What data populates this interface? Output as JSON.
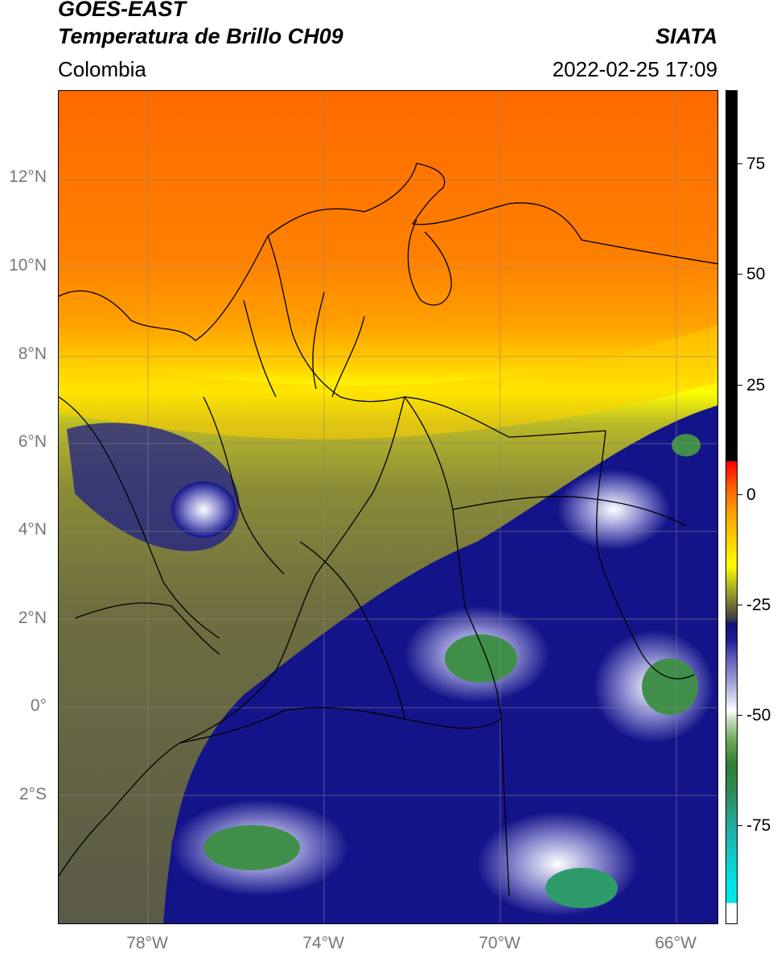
{
  "header": {
    "title_line1": "GOES-EAST",
    "title_line2": "Temperatura de Brillo CH09",
    "brand": "SIATA",
    "region": "Colombia",
    "timestamp": "2022-02-25 17:09"
  },
  "axes": {
    "lat_labels": [
      "12°N",
      "10°N",
      "8°N",
      "6°N",
      "4°N",
      "2°N",
      "0°",
      "2°S"
    ],
    "lon_labels": [
      "78°W",
      "74°W",
      "70°W",
      "66°W"
    ]
  },
  "colorbar": {
    "labels": [
      "75",
      "50",
      "25",
      "0",
      "-25",
      "-50",
      "-75"
    ],
    "colors": {
      "warm_mask": "#000000",
      "hot": "#ff0000",
      "orange": "#ff8c00",
      "yellow": "#ffff00",
      "olive": "#8a8a2e",
      "navy": "#14148a",
      "white": "#ffffff",
      "green": "#2e7d32",
      "cyan": "#00e5e5"
    }
  },
  "map": {
    "grid": true,
    "coastline_color": "#000000"
  }
}
